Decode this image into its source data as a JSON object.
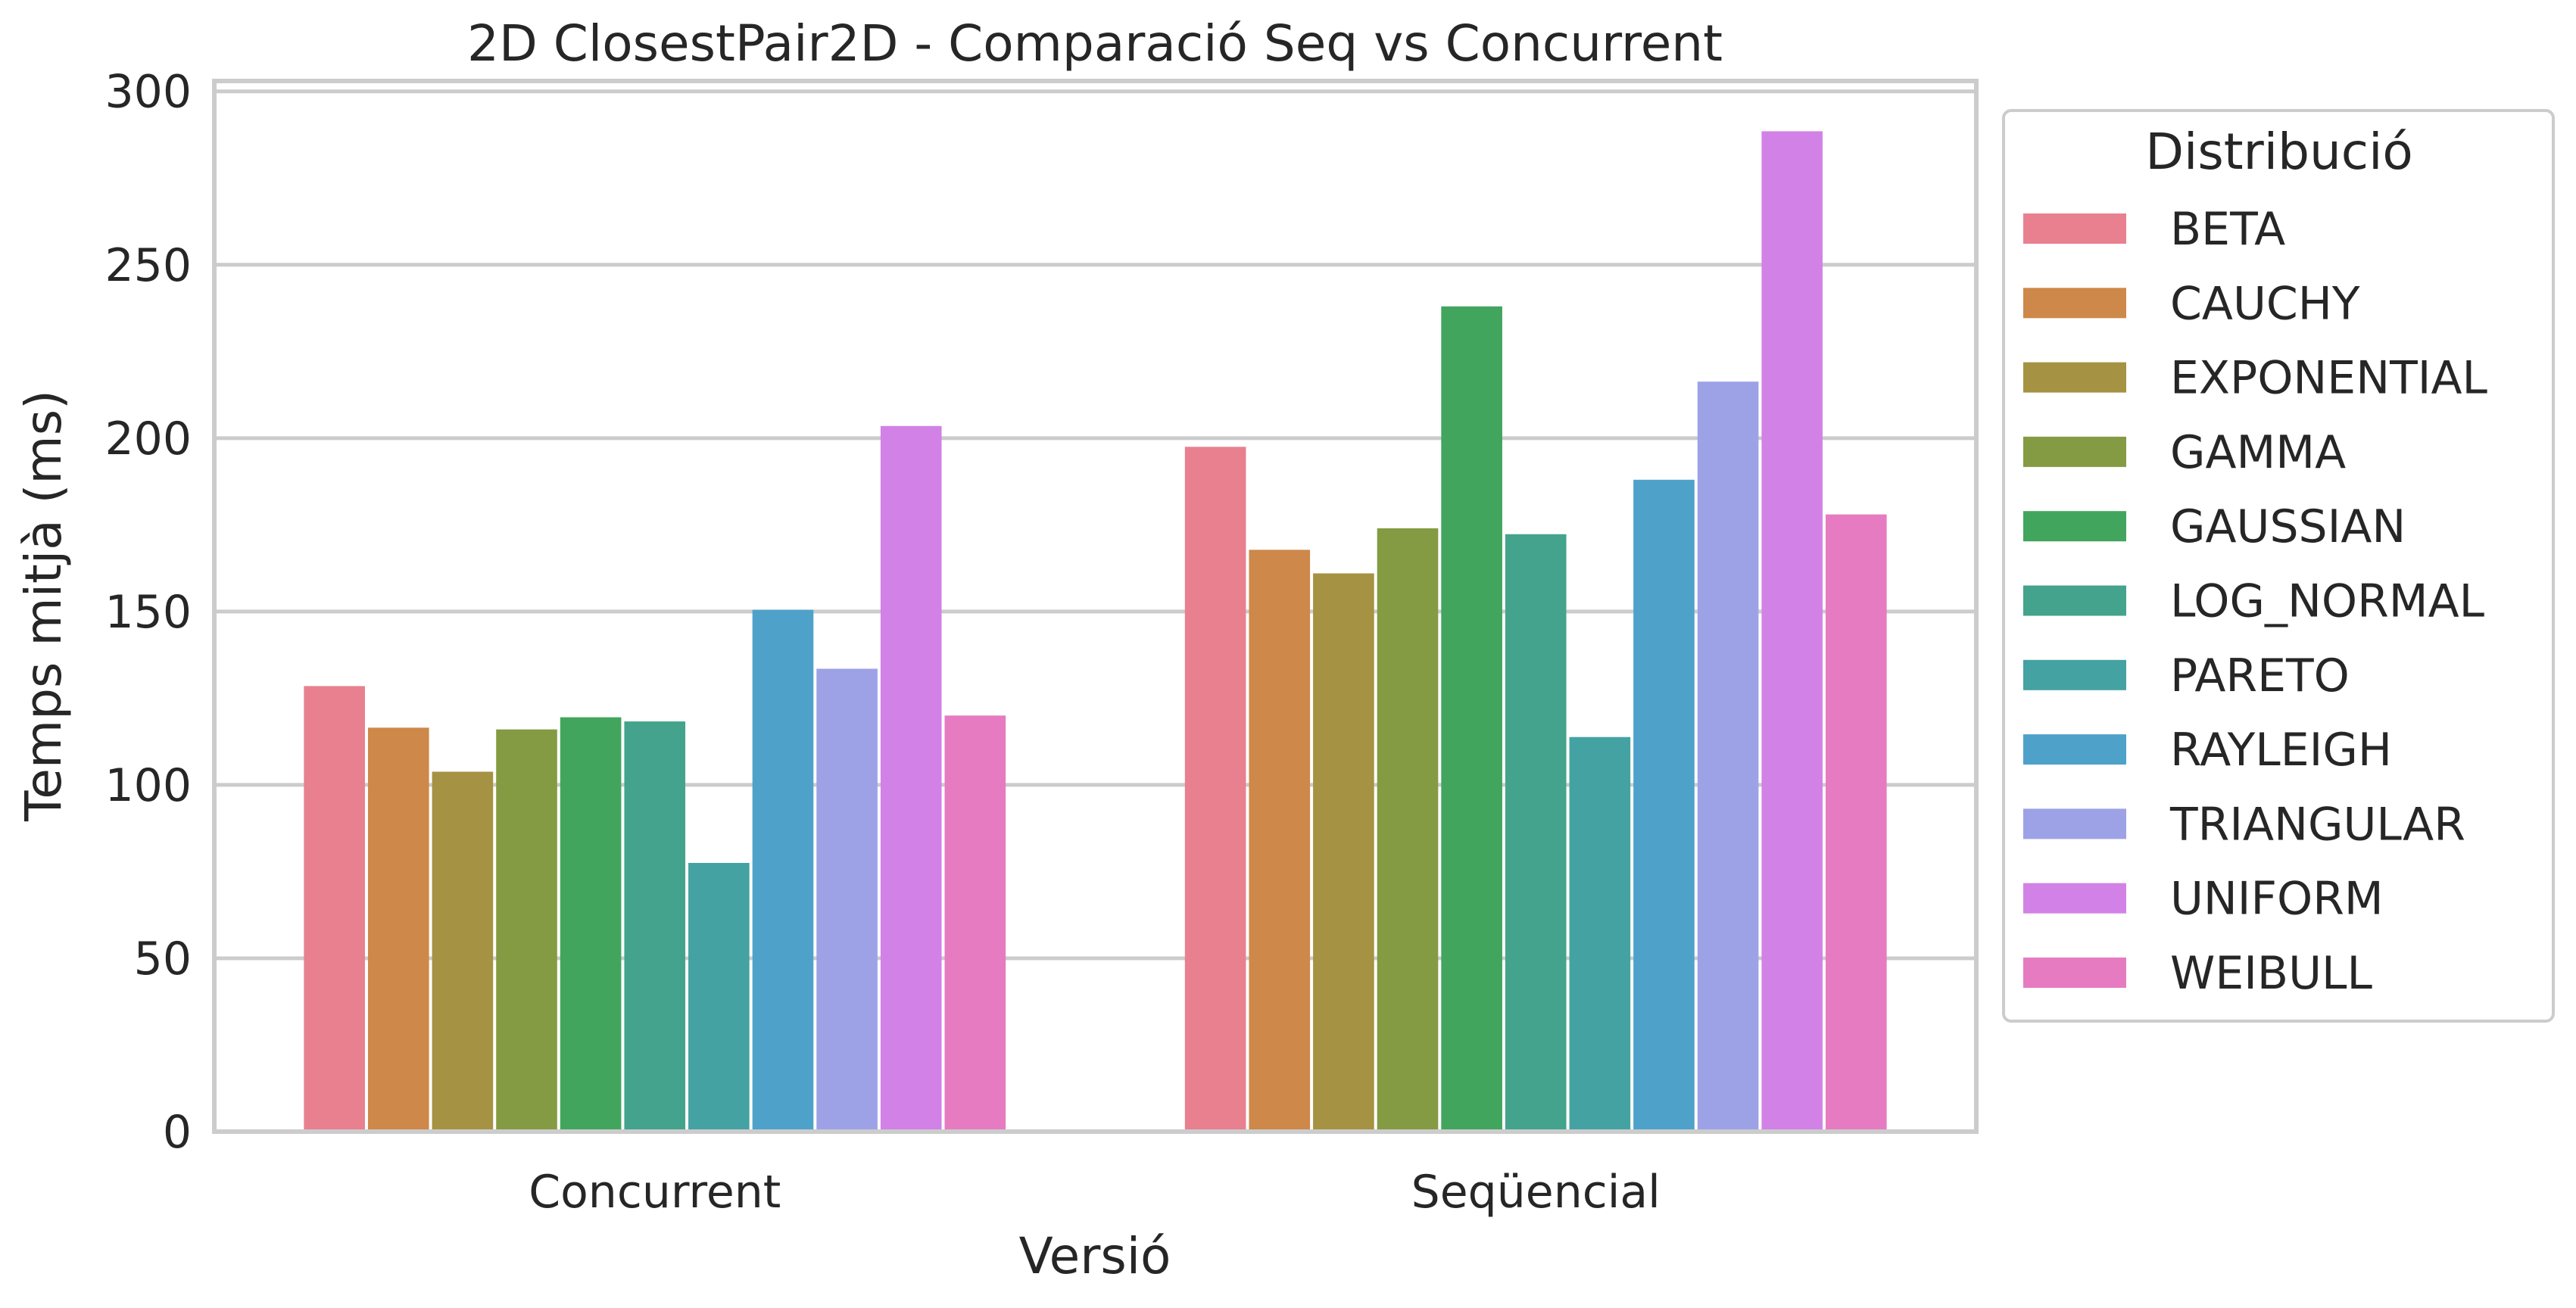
{
  "chart_data": {
    "type": "bar",
    "title": "2D ClosestPair2D - Comparació Seq vs Concurrent",
    "xlabel": "Versió",
    "ylabel": "Temps mitjà (ms)",
    "categories": [
      "Concurrent",
      "Seqüencial"
    ],
    "yticks": [
      "0",
      "50",
      "100",
      "150",
      "200",
      "250",
      "300"
    ],
    "ylim": [
      0,
      303
    ],
    "grid": true,
    "legend": {
      "title": "Distribució",
      "placement": "outside-right"
    },
    "series": [
      {
        "name": "BETA",
        "color": "#E8808F",
        "values": [
          128.5,
          197.5
        ]
      },
      {
        "name": "CAUCHY",
        "color": "#CD884A",
        "values": [
          116.5,
          167.8
        ]
      },
      {
        "name": "EXPONENTIAL",
        "color": "#A69243",
        "values": [
          103.8,
          161.0
        ]
      },
      {
        "name": "GAMMA",
        "color": "#849B43",
        "values": [
          116.0,
          174.0
        ]
      },
      {
        "name": "GAUSSIAN",
        "color": "#42A55D",
        "values": [
          119.5,
          238.0
        ]
      },
      {
        "name": "LOG_NORMAL",
        "color": "#44A38D",
        "values": [
          118.3,
          172.3
        ]
      },
      {
        "name": "PARETO",
        "color": "#45A2A2",
        "values": [
          77.5,
          113.8
        ]
      },
      {
        "name": "RAYLEIGH",
        "color": "#4EA2CA",
        "values": [
          150.5,
          188.0
        ]
      },
      {
        "name": "TRIANGULAR",
        "color": "#9DA2E7",
        "values": [
          133.5,
          216.3
        ]
      },
      {
        "name": "UNIFORM",
        "color": "#D282E6",
        "values": [
          203.5,
          288.5
        ]
      },
      {
        "name": "WEIBULL",
        "color": "#E67BC2",
        "values": [
          120.0,
          178.0
        ]
      }
    ]
  }
}
